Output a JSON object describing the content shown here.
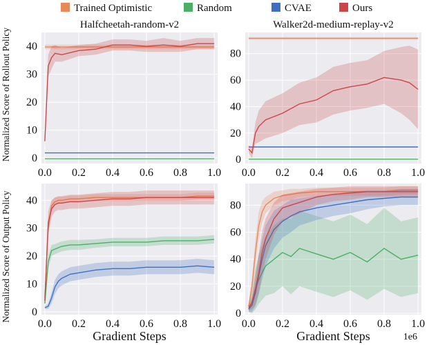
{
  "legend": [
    {
      "name": "Trained Optimistic",
      "color": "#e8895a"
    },
    {
      "name": "Random",
      "color": "#4caf66"
    },
    {
      "name": "CVAE",
      "color": "#3f6fc0"
    },
    {
      "name": "Ours",
      "color": "#cc4649"
    }
  ],
  "row_ylabels": [
    "Normalized Score of Rollout Policy",
    "Normalized Score of Output Policy"
  ],
  "xlabel": "Gradient Steps",
  "x_scale_label": "1e6",
  "chart_data": [
    {
      "type": "line",
      "title": "Halfcheetah-random-v2",
      "ylabel": "Normalized Score of Rollout Policy",
      "xlabel": "",
      "xlim": [
        -0.02,
        1.02
      ],
      "ylim": [
        -2,
        45
      ],
      "xticks": [
        "0.0",
        "0.2",
        "0.4",
        "0.6",
        "0.8",
        "1.0"
      ],
      "yticks": [
        0,
        10,
        20,
        30,
        40
      ],
      "x": [
        0.0,
        0.02,
        0.04,
        0.06,
        0.1,
        0.2,
        0.3,
        0.4,
        0.5,
        0.6,
        0.7,
        0.8,
        0.9,
        1.0
      ],
      "series": [
        {
          "name": "Trained Optimistic",
          "values": [
            39.8,
            39.8,
            39.8,
            39.8,
            39.8,
            39.8,
            39.8,
            39.8,
            39.8,
            39.8,
            39.8,
            39.8,
            39.8,
            39.8
          ],
          "band": [
            0.8,
            0.8,
            0.8,
            0.8,
            0.8,
            0.8,
            0.8,
            0.8,
            0.8,
            0.8,
            0.8,
            0.8,
            0.8,
            0.8
          ]
        },
        {
          "name": "Random",
          "values": [
            -0.3,
            -0.3,
            -0.3,
            -0.3,
            -0.3,
            -0.3,
            -0.3,
            -0.3,
            -0.3,
            -0.3,
            -0.3,
            -0.3,
            -0.3,
            -0.3
          ]
        },
        {
          "name": "CVAE",
          "values": [
            1.8,
            1.8,
            1.8,
            1.8,
            1.8,
            1.8,
            1.8,
            1.8,
            1.8,
            1.8,
            1.8,
            1.8,
            1.8,
            1.8
          ]
        },
        {
          "name": "Ours",
          "values": [
            6,
            33,
            36,
            37.5,
            37,
            38.5,
            39,
            40.5,
            40.5,
            40,
            40.5,
            40,
            41,
            41
          ],
          "band": [
            2,
            4,
            4,
            3,
            2.5,
            2,
            2,
            2,
            2,
            2,
            2.5,
            2,
            2,
            2
          ]
        }
      ]
    },
    {
      "type": "line",
      "title": "Walker2d-medium-replay-v2",
      "ylabel": "",
      "xlabel": "",
      "xlim": [
        -0.02,
        1.02
      ],
      "ylim": [
        -3,
        96
      ],
      "xticks": [
        "0.0",
        "0.2",
        "0.4",
        "0.6",
        "0.8",
        "1.0"
      ],
      "yticks": [
        0,
        20,
        40,
        60,
        80
      ],
      "x": [
        0.0,
        0.02,
        0.04,
        0.06,
        0.1,
        0.2,
        0.3,
        0.4,
        0.5,
        0.6,
        0.7,
        0.8,
        0.9,
        0.95,
        1.0
      ],
      "series": [
        {
          "name": "Trained Optimistic",
          "values": [
            91.5,
            91.5,
            91.5,
            91.5,
            91.5,
            91.5,
            91.5,
            91.5,
            91.5,
            91.5,
            91.5,
            91.5,
            91.5,
            91.5,
            91.5
          ],
          "band": [
            1,
            1,
            1,
            1,
            1,
            1,
            1,
            1,
            1,
            1,
            1,
            1,
            1,
            1,
            1
          ]
        },
        {
          "name": "Random",
          "values": [
            0.3,
            0.3,
            0.3,
            0.3,
            0.3,
            0.3,
            0.3,
            0.3,
            0.3,
            0.3,
            0.3,
            0.3,
            0.3,
            0.3,
            0.3
          ]
        },
        {
          "name": "CVAE",
          "values": [
            9.5,
            9.5,
            9.5,
            9.5,
            9.5,
            9.5,
            9.5,
            9.5,
            9.5,
            9.5,
            9.5,
            9.5,
            9.5,
            9.5,
            9.5
          ]
        },
        {
          "name": "Ours",
          "values": [
            8,
            5,
            20,
            25,
            30,
            35,
            42,
            45,
            52,
            55,
            57,
            62,
            60,
            58,
            53
          ],
          "band": [
            3,
            4,
            8,
            12,
            14,
            15,
            16,
            17,
            18,
            18,
            18,
            20,
            25,
            28,
            30
          ]
        }
      ]
    },
    {
      "type": "line",
      "title": "",
      "ylabel": "Normalized Score of Output Policy",
      "xlabel": "Gradient Steps",
      "xlim": [
        -0.02,
        1.02
      ],
      "ylim": [
        -1,
        46
      ],
      "xticks": [
        "0.0",
        "0.2",
        "0.4",
        "0.6",
        "0.8",
        "1.0"
      ],
      "yticks": [
        0,
        10,
        20,
        30,
        40
      ],
      "x": [
        0.0,
        0.02,
        0.04,
        0.06,
        0.08,
        0.1,
        0.15,
        0.2,
        0.3,
        0.4,
        0.5,
        0.6,
        0.7,
        0.8,
        0.9,
        1.0
      ],
      "series": [
        {
          "name": "Trained Optimistic",
          "values": [
            5,
            30,
            38,
            39.5,
            40,
            40,
            40.5,
            40.5,
            41,
            41,
            41,
            41,
            41,
            41,
            41.5,
            41.5
          ],
          "band": [
            1.5,
            3,
            2,
            1.5,
            1.2,
            1.2,
            1.2,
            1.2,
            1.2,
            1.2,
            1.2,
            1.2,
            1.2,
            1.2,
            1.2,
            1.2
          ]
        },
        {
          "name": "Random",
          "values": [
            3,
            18,
            22,
            22.5,
            23,
            23.5,
            24,
            24,
            24.5,
            25,
            25,
            25,
            25.5,
            25.5,
            25.5,
            26
          ],
          "band": [
            1.5,
            2.5,
            2,
            1.8,
            1.8,
            1.8,
            1.8,
            1.8,
            1.5,
            1.5,
            1.5,
            1.5,
            1.5,
            1.5,
            1.5,
            1.5
          ]
        },
        {
          "name": "CVAE",
          "values": [
            1.5,
            2,
            5,
            9,
            11,
            12,
            13.5,
            14,
            15,
            15.5,
            15.5,
            16,
            16,
            16,
            16.5,
            16
          ],
          "band": [
            0.5,
            1,
            2,
            2.5,
            2.5,
            2.5,
            2.5,
            2.5,
            2.5,
            2.5,
            2.5,
            2.5,
            2.5,
            2.5,
            2.5,
            2.5
          ]
        },
        {
          "name": "Ours",
          "values": [
            4,
            32,
            37,
            38.5,
            39,
            39,
            39.5,
            39.5,
            40,
            40.5,
            40.5,
            41,
            41,
            41,
            41,
            41
          ],
          "band": [
            1.5,
            4,
            3,
            2.5,
            2.5,
            2.5,
            2.5,
            2.5,
            2.5,
            2.5,
            2.5,
            2.5,
            2.5,
            2.5,
            2.5,
            2.5
          ]
        }
      ]
    },
    {
      "type": "line",
      "title": "",
      "ylabel": "",
      "xlabel": "Gradient Steps",
      "xlim": [
        -0.02,
        1.02
      ],
      "ylim": [
        -1,
        96
      ],
      "xticks": [
        "0.0",
        "0.2",
        "0.4",
        "0.6",
        "0.8",
        "1.0"
      ],
      "yticks": [
        0,
        20,
        40,
        60,
        80
      ],
      "x": [
        0.0,
        0.02,
        0.04,
        0.06,
        0.08,
        0.1,
        0.15,
        0.2,
        0.25,
        0.3,
        0.4,
        0.5,
        0.6,
        0.7,
        0.8,
        0.9,
        1.0
      ],
      "series": [
        {
          "name": "Trained Optimistic",
          "values": [
            5,
            20,
            45,
            65,
            75,
            80,
            85,
            87,
            88,
            89,
            90,
            90,
            90,
            90,
            90,
            91,
            91
          ],
          "band": [
            2,
            6,
            10,
            10,
            8,
            6,
            5,
            4,
            4,
            3,
            3,
            3,
            3,
            3,
            3,
            3,
            3
          ]
        },
        {
          "name": "Random",
          "values": [
            3,
            8,
            18,
            25,
            30,
            35,
            40,
            45,
            42,
            48,
            44,
            40,
            45,
            38,
            48,
            40,
            43
          ],
          "band": [
            2,
            8,
            15,
            18,
            20,
            22,
            25,
            25,
            28,
            28,
            28,
            28,
            28,
            28,
            30,
            28,
            28
          ]
        },
        {
          "name": "CVAE",
          "values": [
            3,
            6,
            15,
            28,
            40,
            50,
            62,
            68,
            72,
            75,
            78,
            80,
            82,
            84,
            85,
            86,
            86
          ],
          "band": [
            2,
            5,
            10,
            14,
            15,
            15,
            14,
            12,
            12,
            10,
            9,
            8,
            8,
            7,
            6,
            6,
            6
          ]
        },
        {
          "name": "Ours",
          "values": [
            4,
            8,
            18,
            30,
            45,
            55,
            70,
            78,
            80,
            82,
            86,
            88,
            89,
            90,
            90,
            90,
            90
          ],
          "band": [
            2,
            5,
            12,
            15,
            16,
            15,
            12,
            10,
            9,
            8,
            6,
            5,
            5,
            4,
            4,
            4,
            4
          ]
        }
      ]
    }
  ]
}
